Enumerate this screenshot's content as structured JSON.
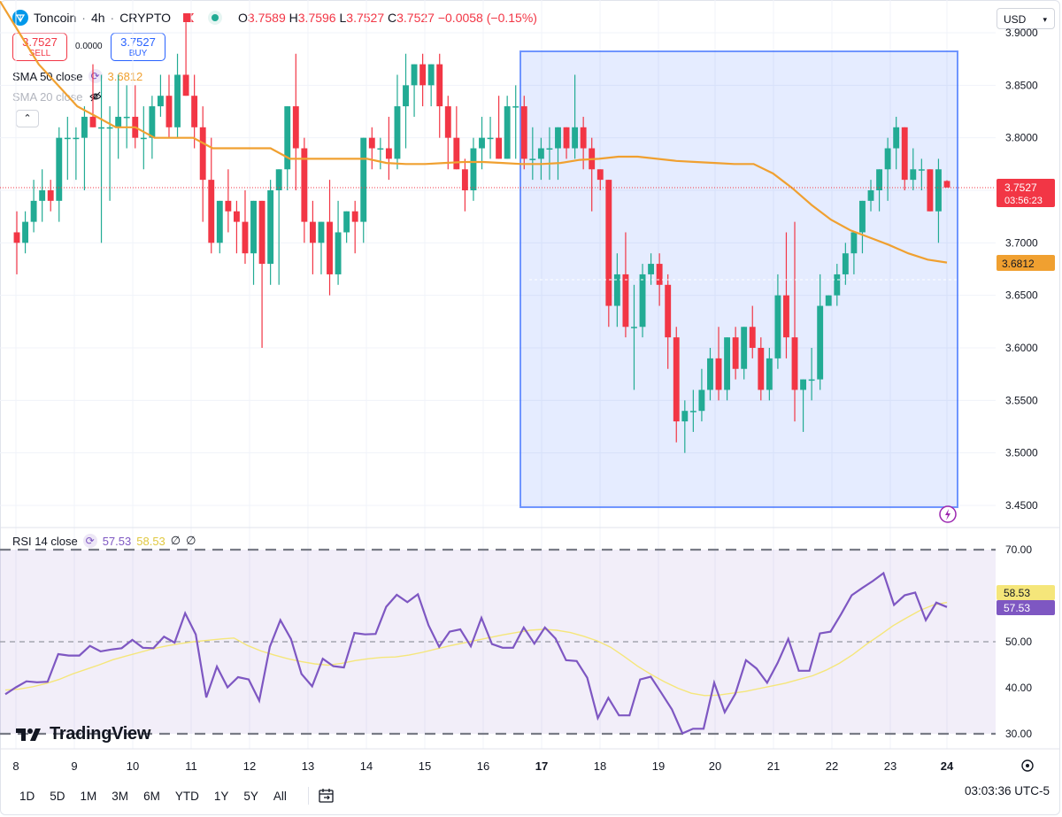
{
  "header": {
    "symbol": "Toncoin",
    "sep": "·",
    "interval": "4h",
    "exchange": "CRYPTO",
    "ohlc": {
      "o_label": "O",
      "o": "3.7589",
      "h_label": "H",
      "h": "3.7596",
      "l_label": "L",
      "l": "3.7527",
      "c_label": "C",
      "c": "3.7527",
      "change": "−0.0058 (−0.15%)"
    }
  },
  "trade": {
    "sell_price": "3.7527",
    "sell_label": "SELL",
    "buy_price": "3.7527",
    "buy_label": "BUY",
    "spread": "0.0000"
  },
  "indicators": {
    "sma50_label": "SMA 50 close",
    "sma50_value": "3.6812",
    "sma20_label": "SMA 20 close",
    "rsi_label": "RSI 14 close",
    "rsi_value": "57.53",
    "rsi_ma_value": "58.53",
    "na1": "∅",
    "na2": "∅"
  },
  "currency": "USD",
  "price_axis": {
    "labels": [
      "3.9000",
      "3.8500",
      "3.8000",
      "3.7500",
      "3.7000",
      "3.6500",
      "3.6000",
      "3.5500",
      "3.5000",
      "3.4500"
    ],
    "current_price": "3.7527",
    "countdown": "03:56:23",
    "sma_tag": "3.6812"
  },
  "rsi_axis": {
    "labels": [
      "70.00",
      "60.00",
      "50.00",
      "40.00",
      "30.00"
    ],
    "rsi_tag": "57.53",
    "ma_tag": "58.53"
  },
  "time_axis": [
    "8",
    "9",
    "10",
    "11",
    "12",
    "13",
    "14",
    "15",
    "16",
    "17",
    "18",
    "19",
    "20",
    "21",
    "22",
    "23",
    "24"
  ],
  "timeframes": [
    "1D",
    "5D",
    "1M",
    "3M",
    "6M",
    "YTD",
    "1Y",
    "5Y",
    "All"
  ],
  "clock": "03:03:36 UTC-5",
  "brand": "TradingView",
  "colors": {
    "up": "#22ab94",
    "down": "#f23645",
    "sma": "#f0a030",
    "rsi": "#7e57c2",
    "rsi_ma": "#f5e67a",
    "box": "#2962ff"
  },
  "chart_data": [
    {
      "type": "candlestick",
      "title": "Toncoin · 4h · CRYPTO",
      "ylim": [
        3.445,
        3.905
      ],
      "x_ticks": [
        "8",
        "9",
        "10",
        "11",
        "12",
        "13",
        "14",
        "15",
        "16",
        "17",
        "18",
        "19",
        "20",
        "21",
        "22",
        "23",
        "24"
      ],
      "candles": [
        [
          3.71,
          3.73,
          3.67,
          3.7
        ],
        [
          3.7,
          3.73,
          3.69,
          3.72
        ],
        [
          3.72,
          3.76,
          3.71,
          3.74
        ],
        [
          3.74,
          3.77,
          3.72,
          3.75
        ],
        [
          3.75,
          3.76,
          3.73,
          3.74
        ],
        [
          3.74,
          3.81,
          3.72,
          3.8
        ],
        [
          3.8,
          3.82,
          3.76,
          3.8
        ],
        [
          3.8,
          3.81,
          3.76,
          3.8
        ],
        [
          3.8,
          3.83,
          3.75,
          3.82
        ],
        [
          3.82,
          3.87,
          3.81,
          3.81
        ],
        [
          3.81,
          3.86,
          3.7,
          3.81
        ],
        [
          3.81,
          3.83,
          3.74,
          3.81
        ],
        [
          3.81,
          3.86,
          3.78,
          3.82
        ],
        [
          3.82,
          3.85,
          3.79,
          3.82
        ],
        [
          3.82,
          3.85,
          3.79,
          3.8
        ],
        [
          3.8,
          3.83,
          3.77,
          3.8
        ],
        [
          3.8,
          3.84,
          3.78,
          3.83
        ],
        [
          3.83,
          3.86,
          3.82,
          3.84
        ],
        [
          3.84,
          3.86,
          3.8,
          3.81
        ],
        [
          3.81,
          3.88,
          3.8,
          3.86
        ],
        [
          3.86,
          3.91,
          3.84,
          3.84
        ],
        [
          3.84,
          3.86,
          3.79,
          3.81
        ],
        [
          3.81,
          3.83,
          3.72,
          3.76
        ],
        [
          3.76,
          3.8,
          3.69,
          3.7
        ],
        [
          3.7,
          3.74,
          3.69,
          3.74
        ],
        [
          3.74,
          3.77,
          3.71,
          3.73
        ],
        [
          3.73,
          3.74,
          3.69,
          3.72
        ],
        [
          3.72,
          3.75,
          3.68,
          3.69
        ],
        [
          3.69,
          3.74,
          3.66,
          3.74
        ],
        [
          3.74,
          3.74,
          3.6,
          3.68
        ],
        [
          3.68,
          3.76,
          3.66,
          3.75
        ],
        [
          3.75,
          3.77,
          3.66,
          3.77
        ],
        [
          3.77,
          3.83,
          3.75,
          3.83
        ],
        [
          3.83,
          3.88,
          3.75,
          3.79
        ],
        [
          3.79,
          3.8,
          3.7,
          3.72
        ],
        [
          3.72,
          3.74,
          3.67,
          3.7
        ],
        [
          3.7,
          3.72,
          3.67,
          3.72
        ],
        [
          3.72,
          3.76,
          3.65,
          3.67
        ],
        [
          3.67,
          3.74,
          3.66,
          3.71
        ],
        [
          3.71,
          3.73,
          3.7,
          3.73
        ],
        [
          3.73,
          3.74,
          3.69,
          3.72
        ],
        [
          3.72,
          3.8,
          3.7,
          3.8
        ],
        [
          3.8,
          3.81,
          3.77,
          3.79
        ],
        [
          3.79,
          3.8,
          3.77,
          3.79
        ],
        [
          3.79,
          3.82,
          3.76,
          3.78
        ],
        [
          3.78,
          3.86,
          3.77,
          3.83
        ],
        [
          3.83,
          3.88,
          3.79,
          3.85
        ],
        [
          3.85,
          3.87,
          3.82,
          3.87
        ],
        [
          3.87,
          3.88,
          3.83,
          3.85
        ],
        [
          3.85,
          3.87,
          3.83,
          3.87
        ],
        [
          3.87,
          3.88,
          3.8,
          3.83
        ],
        [
          3.83,
          3.84,
          3.77,
          3.8
        ],
        [
          3.8,
          3.83,
          3.77,
          3.77
        ],
        [
          3.77,
          3.78,
          3.73,
          3.75
        ],
        [
          3.75,
          3.8,
          3.74,
          3.79
        ],
        [
          3.79,
          3.82,
          3.77,
          3.8
        ],
        [
          3.8,
          3.82,
          3.78,
          3.8
        ],
        [
          3.8,
          3.84,
          3.78,
          3.78
        ],
        [
          3.78,
          3.84,
          3.78,
          3.83
        ],
        [
          3.83,
          3.85,
          3.78,
          3.83
        ],
        [
          3.83,
          3.84,
          3.77,
          3.78
        ],
        [
          3.78,
          3.81,
          3.76,
          3.78
        ],
        [
          3.78,
          3.8,
          3.76,
          3.79
        ],
        [
          3.79,
          3.81,
          3.76,
          3.79
        ],
        [
          3.79,
          3.81,
          3.76,
          3.81
        ],
        [
          3.81,
          3.81,
          3.78,
          3.79
        ],
        [
          3.79,
          3.86,
          3.78,
          3.81
        ],
        [
          3.81,
          3.82,
          3.77,
          3.79
        ],
        [
          3.79,
          3.8,
          3.73,
          3.77
        ],
        [
          3.77,
          3.77,
          3.75,
          3.76
        ],
        [
          3.76,
          3.76,
          3.62,
          3.64
        ],
        [
          3.64,
          3.69,
          3.62,
          3.67
        ],
        [
          3.67,
          3.71,
          3.61,
          3.62
        ],
        [
          3.62,
          3.66,
          3.56,
          3.62
        ],
        [
          3.62,
          3.68,
          3.61,
          3.67
        ],
        [
          3.67,
          3.69,
          3.66,
          3.68
        ],
        [
          3.68,
          3.69,
          3.64,
          3.66
        ],
        [
          3.66,
          3.67,
          3.58,
          3.61
        ],
        [
          3.61,
          3.62,
          3.51,
          3.53
        ],
        [
          3.53,
          3.55,
          3.5,
          3.54
        ],
        [
          3.54,
          3.56,
          3.52,
          3.54
        ],
        [
          3.54,
          3.58,
          3.53,
          3.56
        ],
        [
          3.56,
          3.6,
          3.55,
          3.59
        ],
        [
          3.59,
          3.62,
          3.55,
          3.56
        ],
        [
          3.56,
          3.61,
          3.55,
          3.61
        ],
        [
          3.61,
          3.62,
          3.57,
          3.58
        ],
        [
          3.58,
          3.62,
          3.57,
          3.62
        ],
        [
          3.62,
          3.64,
          3.59,
          3.6
        ],
        [
          3.6,
          3.61,
          3.55,
          3.56
        ],
        [
          3.56,
          3.6,
          3.55,
          3.59
        ],
        [
          3.59,
          3.67,
          3.58,
          3.65
        ],
        [
          3.65,
          3.71,
          3.59,
          3.61
        ],
        [
          3.61,
          3.72,
          3.53,
          3.56
        ],
        [
          3.56,
          3.57,
          3.52,
          3.57
        ],
        [
          3.57,
          3.6,
          3.55,
          3.57
        ],
        [
          3.57,
          3.67,
          3.56,
          3.64
        ],
        [
          3.64,
          3.65,
          3.64,
          3.65
        ],
        [
          3.65,
          3.68,
          3.64,
          3.67
        ],
        [
          3.67,
          3.7,
          3.66,
          3.69
        ],
        [
          3.69,
          3.71,
          3.67,
          3.71
        ],
        [
          3.71,
          3.74,
          3.69,
          3.74
        ],
        [
          3.74,
          3.76,
          3.73,
          3.75
        ],
        [
          3.75,
          3.77,
          3.73,
          3.77
        ],
        [
          3.77,
          3.8,
          3.74,
          3.79
        ],
        [
          3.79,
          3.82,
          3.77,
          3.81
        ],
        [
          3.81,
          3.81,
          3.75,
          3.76
        ],
        [
          3.76,
          3.79,
          3.75,
          3.77
        ],
        [
          3.77,
          3.78,
          3.75,
          3.77
        ],
        [
          3.77,
          3.77,
          3.73,
          3.73
        ],
        [
          3.73,
          3.78,
          3.7,
          3.77
        ],
        [
          3.7589,
          3.7596,
          3.7527,
          3.7527
        ]
      ],
      "sma50": [
        3.93,
        3.9,
        3.87,
        3.85,
        3.83,
        3.82,
        3.81,
        3.81,
        3.8,
        3.8,
        3.8,
        3.79,
        3.79,
        3.79,
        3.79,
        3.78,
        3.78,
        3.78,
        3.78,
        3.78,
        3.776,
        3.775,
        3.775,
        3.776,
        3.777,
        3.777,
        3.776,
        3.775,
        3.775,
        3.776,
        3.779,
        3.78,
        3.782,
        3.782,
        3.78,
        3.778,
        3.777,
        3.776,
        3.775,
        3.775,
        3.766,
        3.752,
        3.736,
        3.722,
        3.712,
        3.705,
        3.698,
        3.69,
        3.684,
        3.6812
      ],
      "rsi": [
        38.6,
        40.1,
        41.4,
        41.2,
        41.3,
        47.3,
        47.0,
        47.0,
        49.1,
        47.9,
        48.3,
        48.6,
        50.4,
        48.7,
        48.6,
        51.1,
        49.8,
        56.2,
        51.6,
        37.9,
        44.6,
        40.1,
        42.3,
        41.8,
        37.2,
        48.9,
        54.7,
        50.6,
        43.0,
        40.3,
        46.3,
        44.7,
        44.4,
        51.9,
        51.6,
        51.7,
        57.6,
        60.2,
        58.6,
        60.3,
        53.6,
        48.9,
        52.2,
        52.7,
        49.0,
        55.2,
        49.5,
        48.7,
        48.7,
        53.1,
        49.6,
        53.1,
        50.7,
        46.0,
        45.8,
        42.2,
        33.4,
        37.8,
        34.0,
        34.0,
        41.8,
        42.4,
        38.9,
        35.3,
        30.1,
        31.1,
        31.1,
        41.1,
        34.7,
        38.7,
        46.0,
        44.2,
        41.1,
        45.4,
        50.6,
        43.7,
        43.7,
        51.8,
        52.2,
        56.0,
        60.1,
        61.7,
        63.2,
        64.9,
        58.0,
        60.1,
        60.7,
        54.7,
        58.5,
        57.53
      ],
      "rsi_ma": [
        39.5,
        39.7,
        40.2,
        40.9,
        41.8,
        43.0,
        44.0,
        45.0,
        46.1,
        46.9,
        47.7,
        48.5,
        49.1,
        49.6,
        50.0,
        50.3,
        50.6,
        50.8,
        49.2,
        48.0,
        47.1,
        46.3,
        45.7,
        45.2,
        44.9,
        45.3,
        45.9,
        46.3,
        46.6,
        46.7,
        47.1,
        47.7,
        48.4,
        49.1,
        49.7,
        50.3,
        50.9,
        51.5,
        52.0,
        52.5,
        52.7,
        52.5,
        52.0,
        51.2,
        50.2,
        48.8,
        46.8,
        44.7,
        42.9,
        41.3,
        39.9,
        38.8,
        38.3,
        38.4,
        38.8,
        39.2,
        39.8,
        40.4,
        41.0,
        41.8,
        42.6,
        43.8,
        45.3,
        47.2,
        49.4,
        51.4,
        53.5,
        55.2,
        56.8,
        58.0,
        58.53
      ],
      "rsi_levels": [
        70,
        50,
        30
      ],
      "rsi_ylim": [
        30,
        70
      ]
    }
  ]
}
